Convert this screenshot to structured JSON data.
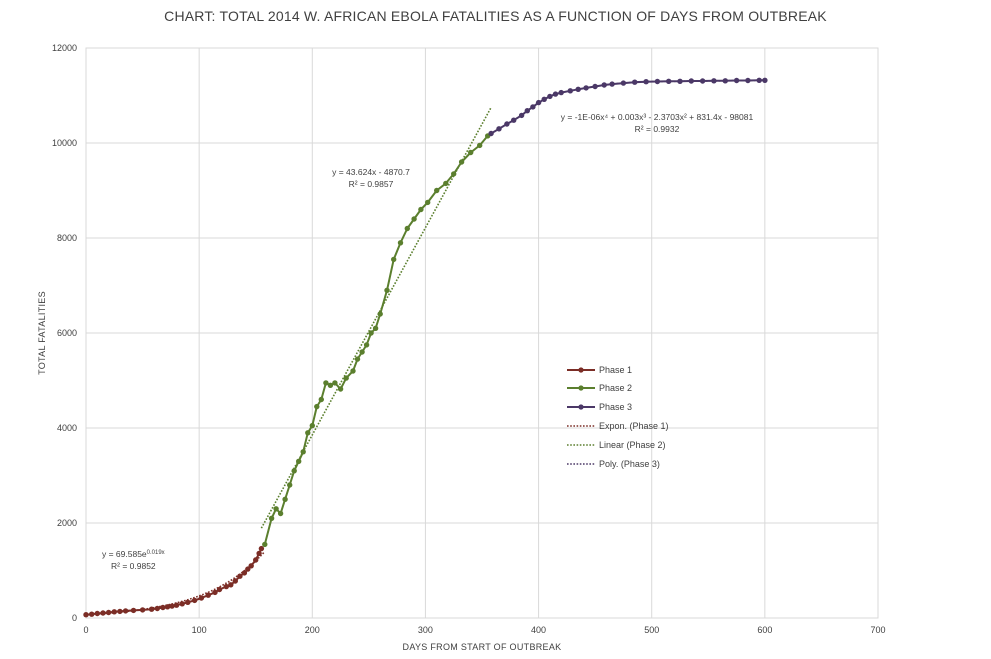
{
  "chart_data": {
    "type": "line",
    "title": "CHART: TOTAL 2014 W. AFRICAN EBOLA FATALITIES AS A FUNCTION OF DAYS FROM OUTBREAK",
    "xlabel": "DAYS FROM START OF OUTBREAK",
    "ylabel": "TOTAL FATALITIES",
    "xlim": [
      0,
      700
    ],
    "ylim": [
      0,
      12000
    ],
    "xticks": [
      0,
      100,
      200,
      300,
      400,
      500,
      600,
      700
    ],
    "yticks": [
      0,
      2000,
      4000,
      6000,
      8000,
      10000,
      12000
    ],
    "grid": true,
    "legend_position": "right",
    "series": [
      {
        "name": "Phase 1",
        "color": "#7b2d26",
        "x": [
          0,
          5,
          10,
          15,
          20,
          25,
          30,
          35,
          42,
          50,
          58,
          63,
          68,
          72,
          76,
          80,
          85,
          90,
          96,
          102,
          108,
          114,
          118,
          124,
          128,
          132,
          136,
          140,
          143,
          146,
          150,
          153,
          155
        ],
        "y": [
          70,
          80,
          95,
          105,
          115,
          130,
          140,
          150,
          160,
          170,
          185,
          200,
          220,
          235,
          250,
          270,
          300,
          330,
          370,
          420,
          480,
          540,
          600,
          660,
          700,
          780,
          880,
          950,
          1030,
          1100,
          1220,
          1360,
          1460
        ]
      },
      {
        "name": "Phase 2",
        "color": "#5b7f2e",
        "x": [
          158,
          164,
          168,
          172,
          176,
          180,
          184,
          188,
          192,
          196,
          200,
          204,
          208,
          212,
          216,
          220,
          225,
          230,
          236,
          240,
          244,
          248,
          252,
          256,
          260,
          266,
          272,
          278,
          284,
          290,
          296,
          302,
          310,
          318,
          325,
          332,
          340,
          348,
          355
        ],
        "y": [
          1550,
          2100,
          2300,
          2200,
          2500,
          2800,
          3100,
          3300,
          3500,
          3900,
          4050,
          4450,
          4600,
          4950,
          4900,
          4950,
          4820,
          5050,
          5200,
          5450,
          5600,
          5750,
          6000,
          6100,
          6400,
          6900,
          7550,
          7900,
          8200,
          8400,
          8600,
          8750,
          9000,
          9150,
          9350,
          9600,
          9800,
          9950,
          10150
        ]
      },
      {
        "name": "Phase 3",
        "color": "#4b3867",
        "x": [
          358,
          365,
          372,
          378,
          385,
          390,
          395,
          400,
          405,
          410,
          415,
          420,
          428,
          435,
          442,
          450,
          458,
          465,
          475,
          485,
          495,
          505,
          515,
          525,
          535,
          545,
          555,
          565,
          575,
          585,
          595,
          600
        ],
        "y": [
          10200,
          10300,
          10400,
          10480,
          10580,
          10680,
          10760,
          10850,
          10920,
          10980,
          11030,
          11060,
          11100,
          11130,
          11160,
          11190,
          11220,
          11240,
          11260,
          11280,
          11290,
          11295,
          11300,
          11300,
          11305,
          11305,
          11310,
          11310,
          11315,
          11315,
          11320,
          11320
        ]
      }
    ],
    "trendlines": [
      {
        "name": "Expon. (Phase 1)",
        "color": "#7b2d26",
        "model": "exponential",
        "equation": "y = 69.585e^0.019x",
        "equation_main": "y = 69.585e",
        "equation_exponent": "0.019x",
        "r2": "R² = 0.9852",
        "a": 69.585,
        "b": 0.019,
        "x_range": [
          0,
          158
        ]
      },
      {
        "name": "Linear (Phase 2)",
        "color": "#5b7f2e",
        "model": "linear",
        "equation": "y = 43.624x - 4870.7",
        "r2": "R² = 0.9857",
        "slope": 43.624,
        "intercept": -4870.7,
        "x_range": [
          155,
          358
        ]
      },
      {
        "name": "Poly. (Phase 3)",
        "color": "#4b3867",
        "model": "polynomial",
        "equation": "y = -1E-06x⁴ + 0.003x³ - 2.3703x² + 831.4x - 98081",
        "r2": "R² = 0.9932"
      }
    ]
  }
}
